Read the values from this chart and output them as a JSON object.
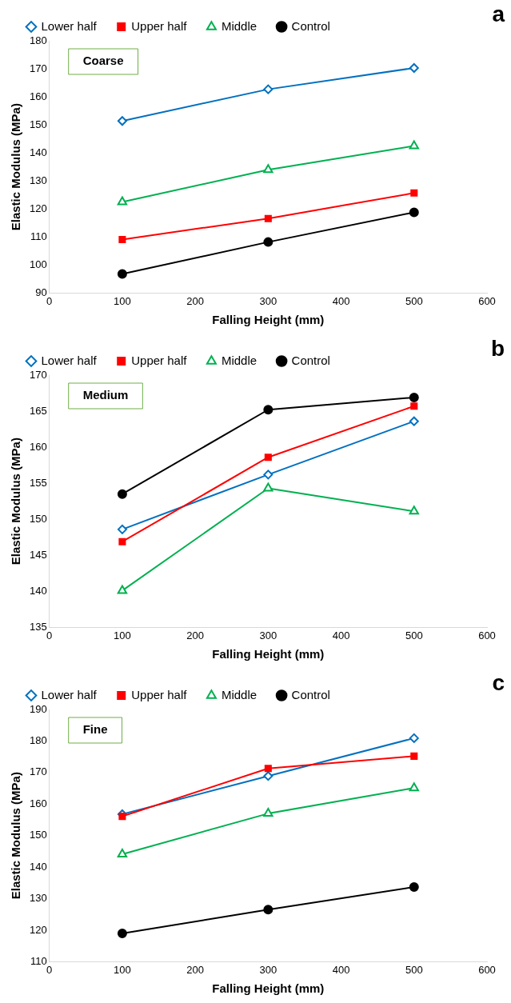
{
  "chart_data": [
    {
      "type": "line",
      "title": "a",
      "xlabel": "Falling Height (mm)",
      "ylabel": "Elastic Modulus (MPa)",
      "annotations": [
        "Coarse"
      ],
      "x": [
        100,
        300,
        500
      ],
      "xlim": [
        0,
        600
      ],
      "xticks": [
        0,
        100,
        200,
        300,
        400,
        500,
        600
      ],
      "ylim": [
        90,
        180
      ],
      "yticks": [
        90,
        100,
        110,
        120,
        130,
        140,
        150,
        160,
        170,
        180
      ],
      "grid": false,
      "legend": "top",
      "series": [
        {
          "name": "Lower half",
          "color": "#0070c0",
          "marker": "diamond",
          "values": [
            151.4,
            162.7,
            170.3
          ]
        },
        {
          "name": "Upper half",
          "color": "#ff0000",
          "marker": "square",
          "values": [
            109.1,
            116.6,
            125.7
          ]
        },
        {
          "name": "Middle",
          "color": "#00b050",
          "marker": "triangle",
          "values": [
            122.5,
            134,
            142.5
          ]
        },
        {
          "name": "Control",
          "color": "#000000",
          "marker": "circle",
          "values": [
            96.8,
            108.2,
            118.8
          ]
        }
      ]
    },
    {
      "type": "line",
      "title": "b",
      "xlabel": "Falling Height (mm)",
      "ylabel": "Elastic Modulus (MPa)",
      "annotations": [
        "Medium"
      ],
      "x": [
        100,
        300,
        500
      ],
      "xlim": [
        0,
        600
      ],
      "xticks": [
        0,
        100,
        200,
        300,
        400,
        500,
        600
      ],
      "ylim": [
        135,
        170
      ],
      "yticks": [
        135,
        140,
        145,
        150,
        155,
        160,
        165,
        170
      ],
      "grid": false,
      "legend": "top",
      "series": [
        {
          "name": "Lower half",
          "color": "#0070c0",
          "marker": "diamond",
          "values": [
            148.6,
            156.2,
            163.6
          ]
        },
        {
          "name": "Upper half",
          "color": "#ff0000",
          "marker": "square",
          "values": [
            146.9,
            158.6,
            165.7
          ]
        },
        {
          "name": "Middle",
          "color": "#00b050",
          "marker": "triangle",
          "values": [
            140.1,
            154.3,
            151.1
          ]
        },
        {
          "name": "Control",
          "color": "#000000",
          "marker": "circle",
          "values": [
            153.5,
            165.2,
            166.9
          ]
        }
      ]
    },
    {
      "type": "line",
      "title": "c",
      "xlabel": "Falling Height (mm)",
      "ylabel": "Elastic Modulus (MPa)",
      "annotations": [
        "Fine"
      ],
      "x": [
        100,
        300,
        500
      ],
      "xlim": [
        0,
        600
      ],
      "xticks": [
        0,
        100,
        200,
        300,
        400,
        500,
        600
      ],
      "ylim": [
        110,
        190
      ],
      "yticks": [
        110,
        120,
        130,
        140,
        150,
        160,
        170,
        180,
        190
      ],
      "grid": false,
      "legend": "top",
      "series": [
        {
          "name": "Lower half",
          "color": "#0070c0",
          "marker": "diamond",
          "values": [
            156.8,
            168.9,
            180.9
          ]
        },
        {
          "name": "Upper half",
          "color": "#ff0000",
          "marker": "square",
          "values": [
            156.1,
            171.3,
            175.2
          ]
        },
        {
          "name": "Middle",
          "color": "#00b050",
          "marker": "triangle",
          "values": [
            144.1,
            157,
            165.1
          ]
        },
        {
          "name": "Control",
          "color": "#000000",
          "marker": "circle",
          "values": [
            119,
            126.5,
            133.7
          ]
        }
      ]
    }
  ]
}
